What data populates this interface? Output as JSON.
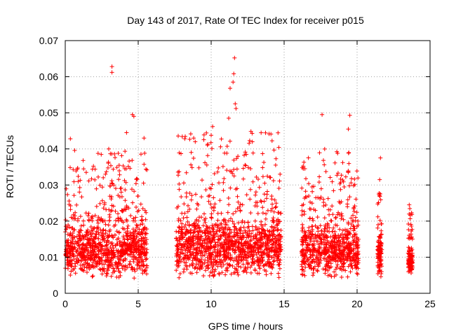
{
  "chart_data": {
    "type": "scatter",
    "title": "Day 143 of 2017, Rate Of TEC Index for receiver p015",
    "xlabel": "GPS time / hours",
    "ylabel": "ROTI / TECUs",
    "xlim": [
      0,
      25
    ],
    "ylim": [
      0,
      0.07
    ],
    "x_ticks": [
      "0",
      "5",
      "10",
      "15",
      "20",
      "25"
    ],
    "y_ticks": [
      "0",
      "0.01",
      "0.02",
      "0.03",
      "0.04",
      "0.05",
      "0.06",
      "0.07"
    ],
    "grid": true,
    "marker": "+",
    "color": "#ff0000",
    "segments": [
      {
        "x": [
          0.0,
          5.6
        ],
        "typical": [
          0.004,
          0.02
        ],
        "upper": [
          0.02,
          0.04
        ]
      },
      {
        "x": [
          7.6,
          14.8
        ],
        "typical": [
          0.004,
          0.022
        ],
        "upper": [
          0.022,
          0.045
        ]
      },
      {
        "x": [
          16.2,
          20.1
        ],
        "typical": [
          0.004,
          0.02
        ],
        "upper": [
          0.02,
          0.04
        ]
      },
      {
        "x": [
          21.4,
          21.7
        ],
        "typical": [
          0.004,
          0.018
        ],
        "upper": [
          0.018,
          0.028
        ]
      },
      {
        "x": [
          23.5,
          23.8
        ],
        "typical": [
          0.005,
          0.013
        ],
        "upper": [
          0.015,
          0.025
        ]
      }
    ],
    "notable_points": [
      {
        "x": 0.35,
        "y": 0.0428
      },
      {
        "x": 3.2,
        "y": 0.0628
      },
      {
        "x": 3.2,
        "y": 0.0612
      },
      {
        "x": 4.6,
        "y": 0.0495
      },
      {
        "x": 4.7,
        "y": 0.049
      },
      {
        "x": 4.2,
        "y": 0.0445
      },
      {
        "x": 5.4,
        "y": 0.043
      },
      {
        "x": 10.1,
        "y": 0.0462
      },
      {
        "x": 11.2,
        "y": 0.0485
      },
      {
        "x": 11.6,
        "y": 0.0652
      },
      {
        "x": 11.55,
        "y": 0.0608
      },
      {
        "x": 11.5,
        "y": 0.0585
      },
      {
        "x": 11.3,
        "y": 0.0568
      },
      {
        "x": 11.65,
        "y": 0.0525
      },
      {
        "x": 11.7,
        "y": 0.0512
      },
      {
        "x": 17.6,
        "y": 0.0495
      },
      {
        "x": 19.5,
        "y": 0.0493
      },
      {
        "x": 19.4,
        "y": 0.0455
      },
      {
        "x": 21.6,
        "y": 0.0375
      },
      {
        "x": 21.55,
        "y": 0.0315
      }
    ]
  }
}
